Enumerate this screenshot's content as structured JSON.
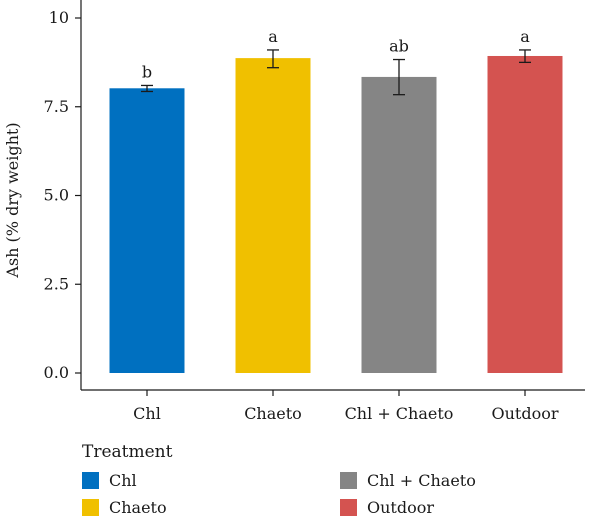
{
  "chart_data": {
    "type": "bar",
    "title": "",
    "xlabel": "",
    "ylabel": "Ash (% dry weight)",
    "ylim": [
      0,
      10
    ],
    "yticks": [
      "0.0",
      "2.5",
      "5.0",
      "7.5",
      "10"
    ],
    "ytick_values": [
      0,
      2.5,
      5,
      7.5,
      10
    ],
    "categories": [
      "Chl",
      "Chaeto",
      "Chl + Chaeto",
      "Outdoor"
    ],
    "values": [
      8.02,
      8.87,
      8.34,
      8.93
    ],
    "error_low": [
      7.93,
      8.6,
      7.84,
      8.75
    ],
    "error_high": [
      8.1,
      9.1,
      8.83,
      9.1
    ],
    "significance": [
      "b",
      "a",
      "ab",
      "a"
    ],
    "colors": [
      "#0070c0",
      "#f0c000",
      "#858585",
      "#d45350"
    ],
    "grid": false,
    "legend_position": "bottom"
  },
  "legend": {
    "title": "Treatment",
    "items": [
      {
        "label": "Chl",
        "color": "#0070c0"
      },
      {
        "label": "Chaeto",
        "color": "#f0c000"
      },
      {
        "label": "Chl + Chaeto",
        "color": "#858585"
      },
      {
        "label": "Outdoor",
        "color": "#d45350"
      }
    ]
  }
}
